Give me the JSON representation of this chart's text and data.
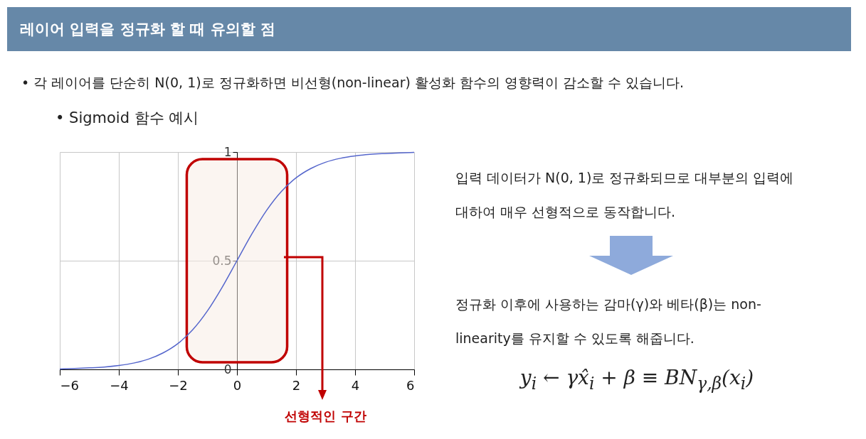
{
  "chart_data": {
    "type": "line",
    "title": "레이어 입력을 정규화 할 때 유의할 점",
    "x": [
      -6,
      -5.5,
      -5,
      -4.5,
      -4,
      -3.5,
      -3,
      -2.5,
      -2,
      -1.5,
      -1,
      -0.5,
      0,
      0.5,
      1,
      1.5,
      2,
      2.5,
      3,
      3.5,
      4,
      4.5,
      5,
      5.5,
      6
    ],
    "series": [
      {
        "color": "#5566cc",
        "values": [
          0.002,
          0.004,
          0.007,
          0.011,
          0.018,
          0.029,
          0.047,
          0.076,
          0.119,
          0.182,
          0.269,
          0.378,
          0.5,
          0.622,
          0.731,
          0.818,
          0.881,
          0.924,
          0.953,
          0.971,
          0.982,
          0.989,
          0.993,
          0.996,
          0.998
        ]
      }
    ],
    "xlim": [
      -6,
      6
    ],
    "xticks": [
      {
        "value": -6,
        "label": "−6"
      },
      {
        "value": -4,
        "label": "−4"
      },
      {
        "value": -2,
        "label": "−2"
      },
      0,
      2,
      4,
      6
    ],
    "ylim": [
      0,
      1
    ],
    "yticks": [
      {
        "value": 0,
        "label": "0"
      },
      0.5,
      {
        "value": 1,
        "label": "1"
      }
    ],
    "grid": true,
    "line_style": "solid",
    "bands": [
      {
        "axis": "x",
        "from": -1.7,
        "to": 1.7,
        "label": "선형적인 구간",
        "color": "#c00000"
      }
    ],
    "annotations": [
      "• 각 레이어를 단순히 N(0, 1)로 정규화하면 비선형(non-linear) 활성화 함수의 영향력이 감소할 수 있습니다.",
      "• Sigmoid 함수 예시",
      "입력 데이터가 N(0, 1)로 정규화되므로 대부분의 입력에 대하여 매우 선형적으로 동작합니다.",
      "정규화 이후에 사용하는 감마(γ)와 베타(β)는 non-linearity를 유지할 수 있도록 해줍니다.",
      "y$_{i}$ ← γx̂$_{i}$ + β ≡ BN$_{γ,β}$(x$_{i}$)"
    ]
  }
}
